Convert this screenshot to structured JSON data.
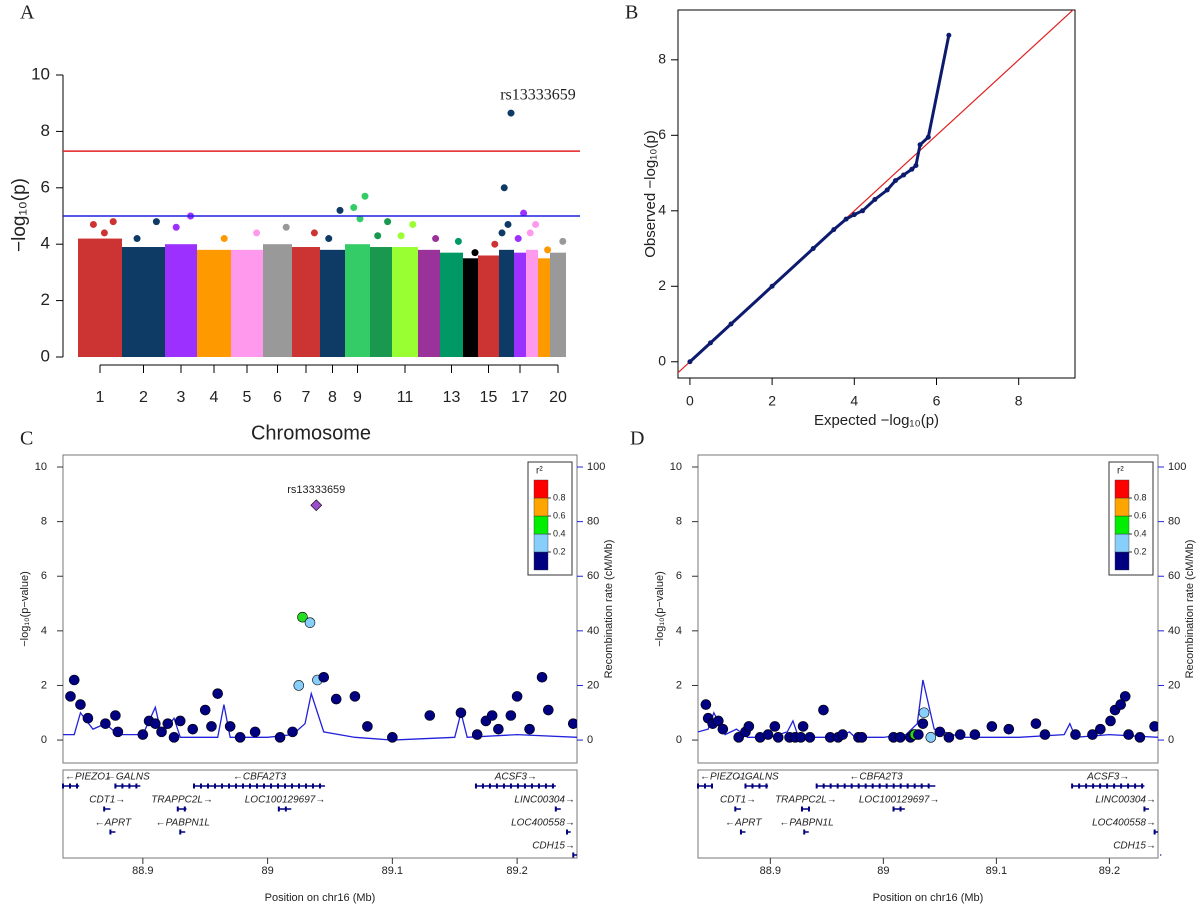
{
  "chart_data": [
    {
      "type": "manhattan",
      "panel_label": "A",
      "y_label": "−log₁₀(p)",
      "x_label": "Chromosome",
      "categories": [
        "1",
        "2",
        "3",
        "4",
        "5",
        "6",
        "7",
        "8",
        "9",
        null,
        "11",
        null,
        "13",
        null,
        "15",
        null,
        "17",
        null,
        null,
        "20"
      ],
      "series": [
        {
          "color": "#cc3333",
          "cloud_top": 4.2,
          "peaks": [
            4.8,
            4.7,
            4.4
          ]
        },
        {
          "color": "#0d3b66",
          "cloud_top": 3.9,
          "peaks": [
            4.8,
            4.2
          ]
        },
        {
          "color": "#9b30ff",
          "cloud_top": 4.0,
          "peaks": [
            5.0,
            4.6
          ]
        },
        {
          "color": "#ff9900",
          "cloud_top": 3.8,
          "peaks": [
            4.2
          ]
        },
        {
          "color": "#ff99ee",
          "cloud_top": 3.8,
          "peaks": [
            4.4
          ]
        },
        {
          "color": "#999999",
          "cloud_top": 4.0,
          "peaks": [
            4.6
          ]
        },
        {
          "color": "#cc3333",
          "cloud_top": 3.9,
          "peaks": [
            4.4
          ]
        },
        {
          "color": "#0d3b66",
          "cloud_top": 3.8,
          "peaks": [
            5.2,
            4.2
          ]
        },
        {
          "color": "#33cc66",
          "cloud_top": 4.0,
          "peaks": [
            5.7,
            5.3,
            4.9
          ]
        },
        {
          "color": "#1a9850",
          "cloud_top": 3.9,
          "peaks": [
            4.8,
            4.3
          ]
        },
        {
          "color": "#99ff33",
          "cloud_top": 3.9,
          "peaks": [
            4.7,
            4.3
          ]
        },
        {
          "color": "#993399",
          "cloud_top": 3.8,
          "peaks": [
            4.2
          ]
        },
        {
          "color": "#009966",
          "cloud_top": 3.7,
          "peaks": [
            4.1
          ]
        },
        {
          "color": "#000000",
          "cloud_top": 3.5,
          "peaks": [
            3.7
          ]
        },
        {
          "color": "#cc3333",
          "cloud_top": 3.6,
          "peaks": [
            4.0
          ]
        },
        {
          "color": "#0d3b66",
          "cloud_top": 3.8,
          "peaks": [
            8.65,
            6.0,
            4.7,
            4.4
          ]
        },
        {
          "color": "#9b30ff",
          "cloud_top": 3.7,
          "peaks": [
            5.1,
            4.2
          ]
        },
        {
          "color": "#ff99ee",
          "cloud_top": 3.8,
          "peaks": [
            4.7,
            4.4
          ]
        },
        {
          "color": "#ff9900",
          "cloud_top": 3.5,
          "peaks": [
            3.8
          ]
        },
        {
          "color": "#999999",
          "cloud_top": 3.7,
          "peaks": [
            4.1
          ]
        }
      ],
      "ylim": [
        0,
        10
      ],
      "yticks": [
        0,
        2,
        4,
        6,
        8,
        10
      ],
      "thresholds": [
        {
          "value": 7.3,
          "color": "#e02020"
        },
        {
          "value": 5,
          "color": "#2020e0"
        }
      ],
      "annotation": "rs13333659"
    },
    {
      "type": "qq",
      "panel_label": "B",
      "x_label": "Expected −log₁₀(p)",
      "y_label": "Observed −log₁₀(p)",
      "x": [
        0,
        0.5,
        1,
        2,
        3,
        3.5,
        3.8,
        4,
        4.2,
        4.5,
        4.8,
        5,
        5.2,
        5.4,
        5.5,
        5.6,
        5.8,
        6.3
      ],
      "y": [
        0,
        0.5,
        1,
        2,
        3,
        3.5,
        3.78,
        3.9,
        4.0,
        4.3,
        4.55,
        4.8,
        4.95,
        5.1,
        5.2,
        5.75,
        5.95,
        8.65
      ],
      "color": "#0d1b6e",
      "line_color": "#e02020",
      "xlim": [
        -0.29,
        9.37
      ],
      "ylim": [
        -0.43,
        9.32
      ],
      "xticks": [
        0,
        2,
        4,
        6,
        8
      ],
      "yticks": [
        0,
        2,
        4,
        6,
        8
      ]
    },
    {
      "type": "regional",
      "panel_label": "C",
      "x_label": "Position on chr16 (Mb)",
      "y_label": "−log₁₀(p−value)",
      "y2_label": "Recombination rate (cM/Mb)",
      "x": [
        88.842,
        88.845,
        88.85,
        88.856,
        88.87,
        88.878,
        88.88,
        88.9,
        88.905,
        88.91,
        88.915,
        88.92,
        88.925,
        88.93,
        88.94,
        88.95,
        88.955,
        88.96,
        88.97,
        88.978,
        88.99,
        89.01,
        89.02,
        89.025,
        89.028,
        89.034,
        89.039,
        89.04,
        89.045,
        89.055,
        89.07,
        89.08,
        89.1,
        89.13,
        89.155,
        89.168,
        89.175,
        89.18,
        89.185,
        89.195,
        89.2,
        89.21,
        89.22,
        89.225,
        89.245
      ],
      "values": [
        1.6,
        2.2,
        1.3,
        0.8,
        0.6,
        0.9,
        0.3,
        0.2,
        0.7,
        0.6,
        0.3,
        0.6,
        0.1,
        0.7,
        0.4,
        1.1,
        0.5,
        1.7,
        0.5,
        0.1,
        0.3,
        0.1,
        0.3,
        2.0,
        4.5,
        4.3,
        8.6,
        2.2,
        2.3,
        1.5,
        1.6,
        0.5,
        0.1,
        0.9,
        1.0,
        0.2,
        0.7,
        0.9,
        0.4,
        0.9,
        1.6,
        0.4,
        2.3,
        1.1,
        0.6
      ],
      "colors": [
        "#000080",
        "#000080",
        "#000080",
        "#000080",
        "#000080",
        "#000080",
        "#000080",
        "#000080",
        "#000080",
        "#000080",
        "#000080",
        "#000080",
        "#000080",
        "#000080",
        "#000080",
        "#000080",
        "#000080",
        "#000080",
        "#000080",
        "#000080",
        "#000080",
        "#000080",
        "#000080",
        "#87cefa",
        "#22dd22",
        "#87cefa",
        "#9b4dca",
        "#87cefa",
        "#000080",
        "#000080",
        "#000080",
        "#000080",
        "#000080",
        "#000080",
        "#000080",
        "#000080",
        "#000080",
        "#000080",
        "#000080",
        "#000080",
        "#000080",
        "#000080",
        "#000080",
        "#000080",
        "#000080"
      ],
      "lead": {
        "index": 26,
        "label": "rs13333659"
      },
      "recombination": {
        "axis": "y2",
        "color": "#2222dd",
        "x": [
          88.836,
          88.845,
          88.85,
          88.86,
          88.87,
          88.88,
          88.9,
          88.91,
          88.915,
          88.925,
          88.93,
          88.96,
          88.965,
          88.97,
          89.0,
          89.02,
          89.03,
          89.035,
          89.045,
          89.07,
          89.1,
          89.15,
          89.155,
          89.16,
          89.2,
          89.248
        ],
        "values": [
          2,
          2,
          10,
          4,
          6,
          2,
          2,
          12,
          2,
          8,
          1,
          1,
          13,
          1,
          1,
          2,
          6,
          17,
          3,
          1,
          0,
          1,
          10,
          1,
          2,
          1
        ]
      },
      "xlim": [
        88.836,
        89.248
      ],
      "ylim": [
        -0.84,
        10.44
      ],
      "y2lim": [
        -8.4,
        104.4
      ],
      "xticks": [
        88.9,
        89,
        89.1,
        89.2
      ],
      "yticks": [
        0,
        2,
        4,
        6,
        8,
        10
      ],
      "y2ticks": [
        0,
        20,
        40,
        60,
        80,
        100
      ],
      "legend_corner": "top-right",
      "legend": {
        "title": "r²",
        "colors": [
          "#000080",
          "#87cefa",
          "#00ee00",
          "#ffa500",
          "#ff0000"
        ],
        "ticks": [
          0.2,
          0.4,
          0.6,
          0.8
        ]
      },
      "genes": [
        {
          "label": "←PIEZO1",
          "start": 88.836,
          "end": 88.849,
          "row": 0
        },
        {
          "label": "←GALNS",
          "start": 88.878,
          "end": 88.898,
          "row": 0
        },
        {
          "label": "←CBFA2T3",
          "start": 88.941,
          "end": 89.046,
          "row": 0
        },
        {
          "label": "ACSF3→",
          "start": 89.167,
          "end": 89.231,
          "row": 0
        },
        {
          "label": "CDT1→",
          "start": 88.869,
          "end": 88.874,
          "row": 1
        },
        {
          "label": "TRAPPC2L→",
          "start": 88.928,
          "end": 88.935,
          "row": 1
        },
        {
          "label": "LOC100129697→",
          "start": 89.009,
          "end": 89.019,
          "row": 1
        },
        {
          "label": "LINC00304→",
          "start": 89.231,
          "end": 89.235,
          "row": 1
        },
        {
          "label": "←APRT",
          "start": 88.874,
          "end": 88.878,
          "row": 2
        },
        {
          "label": "←PABPN1L",
          "start": 88.93,
          "end": 88.934,
          "row": 2
        },
        {
          "label": "LOC400558→",
          "start": 89.24,
          "end": 89.243,
          "row": 2
        },
        {
          "label": "CDH15→",
          "start": 89.245,
          "end": 89.248,
          "row": 3
        }
      ]
    },
    {
      "type": "regional",
      "panel_label": "D",
      "x_label": "Position on chr16 (Mb)",
      "y_label": "−log₁₀(p−value)",
      "y2_label": "Recombination rate (cM/Mb)",
      "x": [
        88.843,
        88.845,
        88.849,
        88.854,
        88.858,
        88.872,
        88.878,
        88.881,
        88.891,
        88.898,
        88.904,
        88.907,
        88.917,
        88.922,
        88.927,
        88.929,
        88.935,
        88.947,
        88.953,
        88.96,
        88.964,
        88.978,
        88.981,
        89.009,
        89.015,
        89.024,
        89.027,
        89.028,
        89.031,
        89.035,
        89.036,
        89.042,
        89.05,
        89.058,
        89.068,
        89.081,
        89.096,
        89.111,
        89.135,
        89.143,
        89.17,
        89.185,
        89.192,
        89.201,
        89.205,
        89.21,
        89.214,
        89.217,
        89.227,
        89.24
      ],
      "values": [
        1.3,
        0.8,
        0.6,
        0.7,
        0.4,
        0.1,
        0.3,
        0.5,
        0.1,
        0.2,
        0.5,
        0.1,
        0.1,
        0.1,
        0.1,
        0.5,
        0.1,
        1.1,
        0.1,
        0.1,
        0.2,
        0.1,
        0.1,
        0.1,
        0.1,
        0.1,
        0.2,
        0.2,
        0.2,
        0.6,
        1.0,
        0.1,
        0.3,
        0.1,
        0.2,
        0.2,
        0.5,
        0.4,
        0.6,
        0.2,
        0.2,
        0.2,
        0.4,
        0.7,
        1.1,
        1.3,
        1.6,
        0.2,
        0.1,
        0.5
      ],
      "colors": [
        "#000080",
        "#000080",
        "#000080",
        "#000080",
        "#000080",
        "#000080",
        "#000080",
        "#000080",
        "#000080",
        "#000080",
        "#000080",
        "#000080",
        "#000080",
        "#000080",
        "#000080",
        "#000080",
        "#000080",
        "#000080",
        "#000080",
        "#000080",
        "#000080",
        "#000080",
        "#000080",
        "#000080",
        "#000080",
        "#000080",
        "#000080",
        "#22dd22",
        "#000080",
        "#000080",
        "#87cefa",
        "#87cefa",
        "#000080",
        "#000080",
        "#000080",
        "#000080",
        "#000080",
        "#000080",
        "#000080",
        "#000080",
        "#000080",
        "#000080",
        "#000080",
        "#000080",
        "#000080",
        "#000080",
        "#000080",
        "#000080",
        "#000080",
        "#000080"
      ],
      "recombination": {
        "axis": "y2",
        "color": "#2222dd",
        "x": [
          88.836,
          88.845,
          88.85,
          88.86,
          88.87,
          88.88,
          88.9,
          88.915,
          88.92,
          88.925,
          88.96,
          88.97,
          88.975,
          89.0,
          89.02,
          89.03,
          89.035,
          89.045,
          89.07,
          89.12,
          89.16,
          89.165,
          89.17,
          89.2,
          89.243
        ],
        "values": [
          3,
          4,
          10,
          2,
          4,
          1,
          1,
          3,
          7,
          1,
          1,
          3,
          1,
          1,
          2,
          6,
          22,
          4,
          1,
          1,
          2,
          6,
          1,
          2,
          1
        ]
      },
      "xlim": [
        88.836,
        89.243
      ],
      "ylim": [
        -0.84,
        10.44
      ],
      "y2lim": [
        -8.4,
        104.4
      ],
      "xticks": [
        88.9,
        89,
        89.1,
        89.2
      ],
      "yticks": [
        0,
        2,
        4,
        6,
        8,
        10
      ],
      "y2ticks": [
        0,
        20,
        40,
        60,
        80,
        100
      ],
      "legend_corner": "top-right",
      "legend": {
        "title": "r²",
        "colors": [
          "#000080",
          "#87cefa",
          "#00ee00",
          "#ffa500",
          "#ff0000"
        ],
        "ticks": [
          0.2,
          0.4,
          0.6,
          0.8
        ]
      },
      "genes": [
        {
          "label": "←PIEZO1",
          "start": 88.836,
          "end": 88.849,
          "row": 0
        },
        {
          "label": "←GALNS",
          "start": 88.878,
          "end": 88.898,
          "row": 0
        },
        {
          "label": "←CBFA2T3",
          "start": 88.941,
          "end": 89.046,
          "row": 0
        },
        {
          "label": "ACSF3→",
          "start": 89.167,
          "end": 89.231,
          "row": 0
        },
        {
          "label": "CDT1→",
          "start": 88.869,
          "end": 88.874,
          "row": 1
        },
        {
          "label": "TRAPPC2L→",
          "start": 88.928,
          "end": 88.935,
          "row": 1
        },
        {
          "label": "LOC100129697→",
          "start": 89.009,
          "end": 89.019,
          "row": 1
        },
        {
          "label": "LINC00304→",
          "start": 89.231,
          "end": 89.235,
          "row": 1
        },
        {
          "label": "←APRT",
          "start": 88.874,
          "end": 88.878,
          "row": 2
        },
        {
          "label": "←PABPN1L",
          "start": 88.93,
          "end": 88.934,
          "row": 2
        },
        {
          "label": "LOC400558→",
          "start": 89.24,
          "end": 89.243,
          "row": 2
        },
        {
          "label": "CDH15→",
          "start": 89.245,
          "end": 89.248,
          "row": 3
        }
      ]
    }
  ]
}
